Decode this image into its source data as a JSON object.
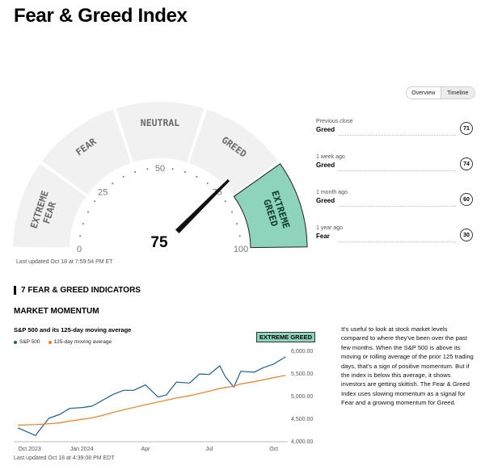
{
  "page_title": "Fear & Greed Index",
  "gauge": {
    "value": "75",
    "value_number": 75,
    "segments": [
      "EXTREME FEAR",
      "FEAR",
      "NEUTRAL",
      "GREED",
      "EXTREME GREED"
    ],
    "active_segment": "EXTREME GREED",
    "ticks": [
      "0",
      "25",
      "50",
      "75",
      "100"
    ],
    "colors": {
      "segment": "#f1f1f1",
      "active": "#8ed3bc",
      "label": "#6a6a6a",
      "needle": "#111111"
    }
  },
  "updated": "Last updated Oct 18 at 7:59:54 PM ET",
  "view_toggle": {
    "options": [
      "Overview",
      "Timeline"
    ],
    "selected": "Overview"
  },
  "history": [
    {
      "label": "Previous close",
      "rating": "Greed",
      "value": "71",
      "color": "#cdeee0"
    },
    {
      "label": "1 week ago",
      "rating": "Greed",
      "value": "74",
      "color": "#cdeee0"
    },
    {
      "label": "1 month ago",
      "rating": "Greed",
      "value": "60",
      "color": "#cdeee0"
    },
    {
      "label": "1 year ago",
      "rating": "Fear",
      "value": "30",
      "color": "#fbd9c3"
    }
  ],
  "section": {
    "title": "7 FEAR & GREED INDICATORS"
  },
  "indicator": {
    "name": "MARKET MOMENTUM",
    "chart_title": "S&P 500 and its 125-day moving average",
    "badge": "EXTREME GREED",
    "description": "It's useful to look at stock market levels compared to where they've been over the past few months. When the S&P 500 is above its moving or rolling average of the prior 125 trading days, that's a sign of positive momentum. But if the index is below this average, it shows investors are getting skittish. The Fear & Greed Index uses slowing momentum as a signal for Fear and a growing momentum for Greed.",
    "updated": "Last updated Oct 18 at 4:39:08 PM EDT"
  },
  "chart_data": {
    "type": "line",
    "title": "S&P 500 and its 125-day moving average",
    "x": [
      "2023-10-02",
      "2023-10-27",
      "2023-11-15",
      "2023-12-01",
      "2023-12-15",
      "2024-01-02",
      "2024-01-16",
      "2024-02-01",
      "2024-02-15",
      "2024-03-01",
      "2024-03-15",
      "2024-04-01",
      "2024-04-19",
      "2024-05-01",
      "2024-05-15",
      "2024-06-03",
      "2024-06-17",
      "2024-07-01",
      "2024-07-16",
      "2024-07-24",
      "2024-08-05",
      "2024-08-15",
      "2024-09-03",
      "2024-09-16",
      "2024-10-01",
      "2024-10-18"
    ],
    "series": [
      {
        "name": "S&P 500",
        "color": "#1f5f8b",
        "values": [
          4290,
          4120,
          4500,
          4590,
          4720,
          4740,
          4770,
          4910,
          5030,
          5120,
          5120,
          5240,
          4970,
          5020,
          5300,
          5280,
          5480,
          5470,
          5660,
          5420,
          5190,
          5540,
          5520,
          5620,
          5700,
          5860
        ]
      },
      {
        "name": "125-day moving average",
        "color": "#f07c22",
        "values": [
          4350,
          4360,
          4380,
          4400,
          4440,
          4480,
          4510,
          4570,
          4630,
          4690,
          4740,
          4800,
          4860,
          4900,
          4950,
          5000,
          5050,
          5100,
          5160,
          5180,
          5210,
          5260,
          5310,
          5350,
          5400,
          5450
        ]
      }
    ],
    "xticks": [
      "Oct 2023",
      "Jan 2024",
      "Apr",
      "Jul",
      "Oct"
    ],
    "xtick_dates": [
      "2023-10-01",
      "2024-01-01",
      "2024-04-01",
      "2024-07-01",
      "2024-10-01"
    ],
    "yticks": [
      "6,000.00",
      "5,500.00",
      "5,000.00",
      "4,500.00",
      "4,000.00"
    ],
    "ytick_values": [
      6000,
      5500,
      5000,
      4500,
      4000
    ],
    "ylim": [
      4000,
      6000
    ],
    "xlim": [
      "2023-09-26",
      "2024-10-21"
    ],
    "grid": false,
    "legend": "top-left"
  }
}
